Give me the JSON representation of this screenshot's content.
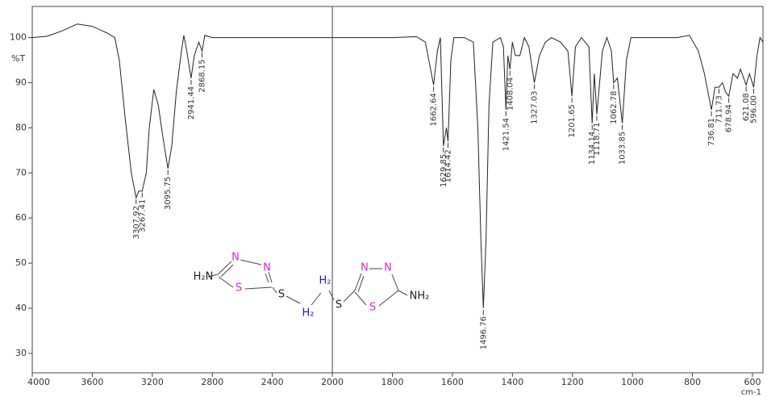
{
  "chart_data": {
    "type": "line",
    "y_label": "%T",
    "x_label": "cm-1",
    "xlim": [
      4000,
      565
    ],
    "x_break": 2000,
    "x_break_expansion": 2,
    "ylim": [
      25.7,
      106.9
    ],
    "xticks": [
      4000,
      3600,
      3200,
      2800,
      2400,
      2000,
      1800,
      1600,
      1400,
      1200,
      1000,
      800,
      600
    ],
    "yticks": [
      30,
      40,
      50,
      60,
      70,
      80,
      90,
      100
    ],
    "color": "#222222",
    "x": [
      4000,
      3900,
      3800,
      3700,
      3600,
      3500,
      3450,
      3420,
      3380,
      3340,
      3307.92,
      3290,
      3267.41,
      3240,
      3220,
      3190,
      3160,
      3130,
      3095.75,
      3070,
      3040,
      3010,
      2990,
      2970,
      2941.44,
      2920,
      2890,
      2868.15,
      2850,
      2800,
      2600,
      2400,
      2200,
      2000,
      1800,
      1720,
      1690,
      1662.64,
      1650,
      1640,
      1629.85,
      1620,
      1614.42,
      1605,
      1595,
      1560,
      1530,
      1515,
      1505,
      1496.76,
      1488,
      1478,
      1465,
      1440,
      1430,
      1421.54,
      1415,
      1408.04,
      1400,
      1390,
      1375,
      1360,
      1345,
      1327.03,
      1310,
      1290,
      1270,
      1240,
      1215,
      1201.65,
      1190,
      1170,
      1145,
      1134.14,
      1127,
      1118.71,
      1100,
      1085,
      1070,
      1062.78,
      1050,
      1033.85,
      1020,
      1005,
      950,
      900,
      850,
      810,
      780,
      760,
      736.81,
      725,
      711.73,
      700,
      690,
      678.94,
      665,
      650,
      640,
      621.08,
      610,
      596,
      585,
      575,
      565
    ],
    "y": [
      100,
      100.3,
      101.5,
      103,
      102.5,
      101,
      100,
      95,
      82,
      70,
      64.5,
      66,
      66,
      70,
      80,
      88.5,
      85,
      78,
      71,
      76,
      88,
      96,
      100.5,
      97,
      91,
      96,
      99,
      97,
      100.5,
      100,
      100,
      100,
      100,
      100,
      100,
      100.2,
      99,
      89.5,
      97,
      100,
      76,
      80,
      77,
      95,
      100,
      100,
      99,
      80,
      55,
      40,
      55,
      85,
      99,
      100,
      98,
      84,
      96,
      93,
      99,
      96,
      96,
      100,
      98,
      90,
      96,
      99,
      100,
      99,
      97,
      87,
      98,
      100,
      98,
      81,
      92,
      83,
      97,
      100,
      97,
      90,
      91,
      81,
      95,
      100,
      100,
      100,
      100,
      100.5,
      97,
      92,
      84,
      89,
      89,
      90,
      88,
      87,
      92,
      91,
      93,
      89.5,
      92,
      89,
      96,
      100,
      99
    ],
    "peak_labels": [
      {
        "x": 3307.92,
        "y": 64.5,
        "label": "3307.92"
      },
      {
        "x": 3267.41,
        "y": 66,
        "label": "3267.41"
      },
      {
        "x": 3095.75,
        "y": 71,
        "label": "3095.75"
      },
      {
        "x": 2941.44,
        "y": 91,
        "label": "2941.44"
      },
      {
        "x": 2868.15,
        "y": 97,
        "label": "2868.15"
      },
      {
        "x": 1662.64,
        "y": 89.5,
        "label": "1662.64"
      },
      {
        "x": 1629.85,
        "y": 76,
        "label": "1629.85"
      },
      {
        "x": 1614.42,
        "y": 77,
        "label": "1614.42"
      },
      {
        "x": 1496.76,
        "y": 40,
        "label": "1496.76"
      },
      {
        "x": 1421.54,
        "y": 84,
        "label": "1421.54"
      },
      {
        "x": 1408.04,
        "y": 93,
        "label": "1408.04"
      },
      {
        "x": 1327.03,
        "y": 90,
        "label": "1327.03"
      },
      {
        "x": 1201.65,
        "y": 87,
        "label": "1201.65"
      },
      {
        "x": 1134.14,
        "y": 81,
        "label": "1134.14"
      },
      {
        "x": 1118.71,
        "y": 83,
        "label": "1118.71"
      },
      {
        "x": 1062.78,
        "y": 90,
        "label": "1062.78"
      },
      {
        "x": 1033.85,
        "y": 81,
        "label": "1033.85"
      },
      {
        "x": 736.81,
        "y": 84,
        "label": "736.81"
      },
      {
        "x": 711.73,
        "y": 89,
        "label": "711.73"
      },
      {
        "x": 678.94,
        "y": 87,
        "label": "678.94"
      },
      {
        "x": 621.08,
        "y": 89.5,
        "label": "621.08"
      },
      {
        "x": 596,
        "y": 89,
        "label": "596.00"
      }
    ]
  },
  "structure": {
    "atoms": [
      "H₂N",
      "N",
      "N",
      "S",
      "S",
      "H₂",
      "H₂",
      "S",
      "N",
      "N",
      "S",
      "NH₂"
    ]
  }
}
